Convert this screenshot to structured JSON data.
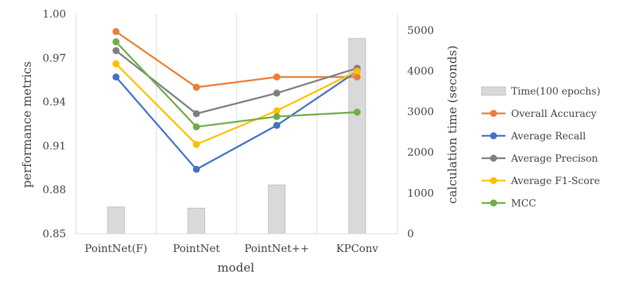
{
  "chart_data": {
    "type": "line",
    "categories": [
      "PointNet(F)",
      "PointNet",
      "PointNet++",
      "KPConv"
    ],
    "xlabel": "model",
    "ylabel": "performance metrics",
    "y2label": "calculation time (seconds)",
    "ylim": [
      0.85,
      1.0
    ],
    "y_ticks": [
      "0.85",
      "0.88",
      "0.91",
      "0.94",
      "0.97",
      "1.00"
    ],
    "y2lim": [
      0,
      5400
    ],
    "y2_ticks": [
      "0",
      "1000",
      "2000",
      "3000",
      "4000",
      "5000"
    ],
    "grid": "vertical",
    "legend_position": "right",
    "bars": {
      "name": "Time(100 epochs)",
      "color": "#d9d9d9",
      "values": [
        660,
        630,
        1200,
        4800
      ]
    },
    "series": [
      {
        "name": "Overall Accuracy",
        "color": "#ed7d31",
        "values": [
          0.988,
          0.95,
          0.957,
          0.957
        ]
      },
      {
        "name": "Average Recall",
        "color": "#4472c4",
        "values": [
          0.957,
          0.894,
          0.924,
          0.961
        ]
      },
      {
        "name": "Average Precison",
        "color": "#7f7f7f",
        "values": [
          0.975,
          0.932,
          0.946,
          0.963
        ]
      },
      {
        "name": "Average F1-Score",
        "color": "#ffc000",
        "values": [
          0.966,
          0.911,
          0.934,
          0.961
        ]
      },
      {
        "name": "MCC",
        "color": "#70ad47",
        "values": [
          0.981,
          0.923,
          0.93,
          0.933
        ]
      }
    ]
  }
}
